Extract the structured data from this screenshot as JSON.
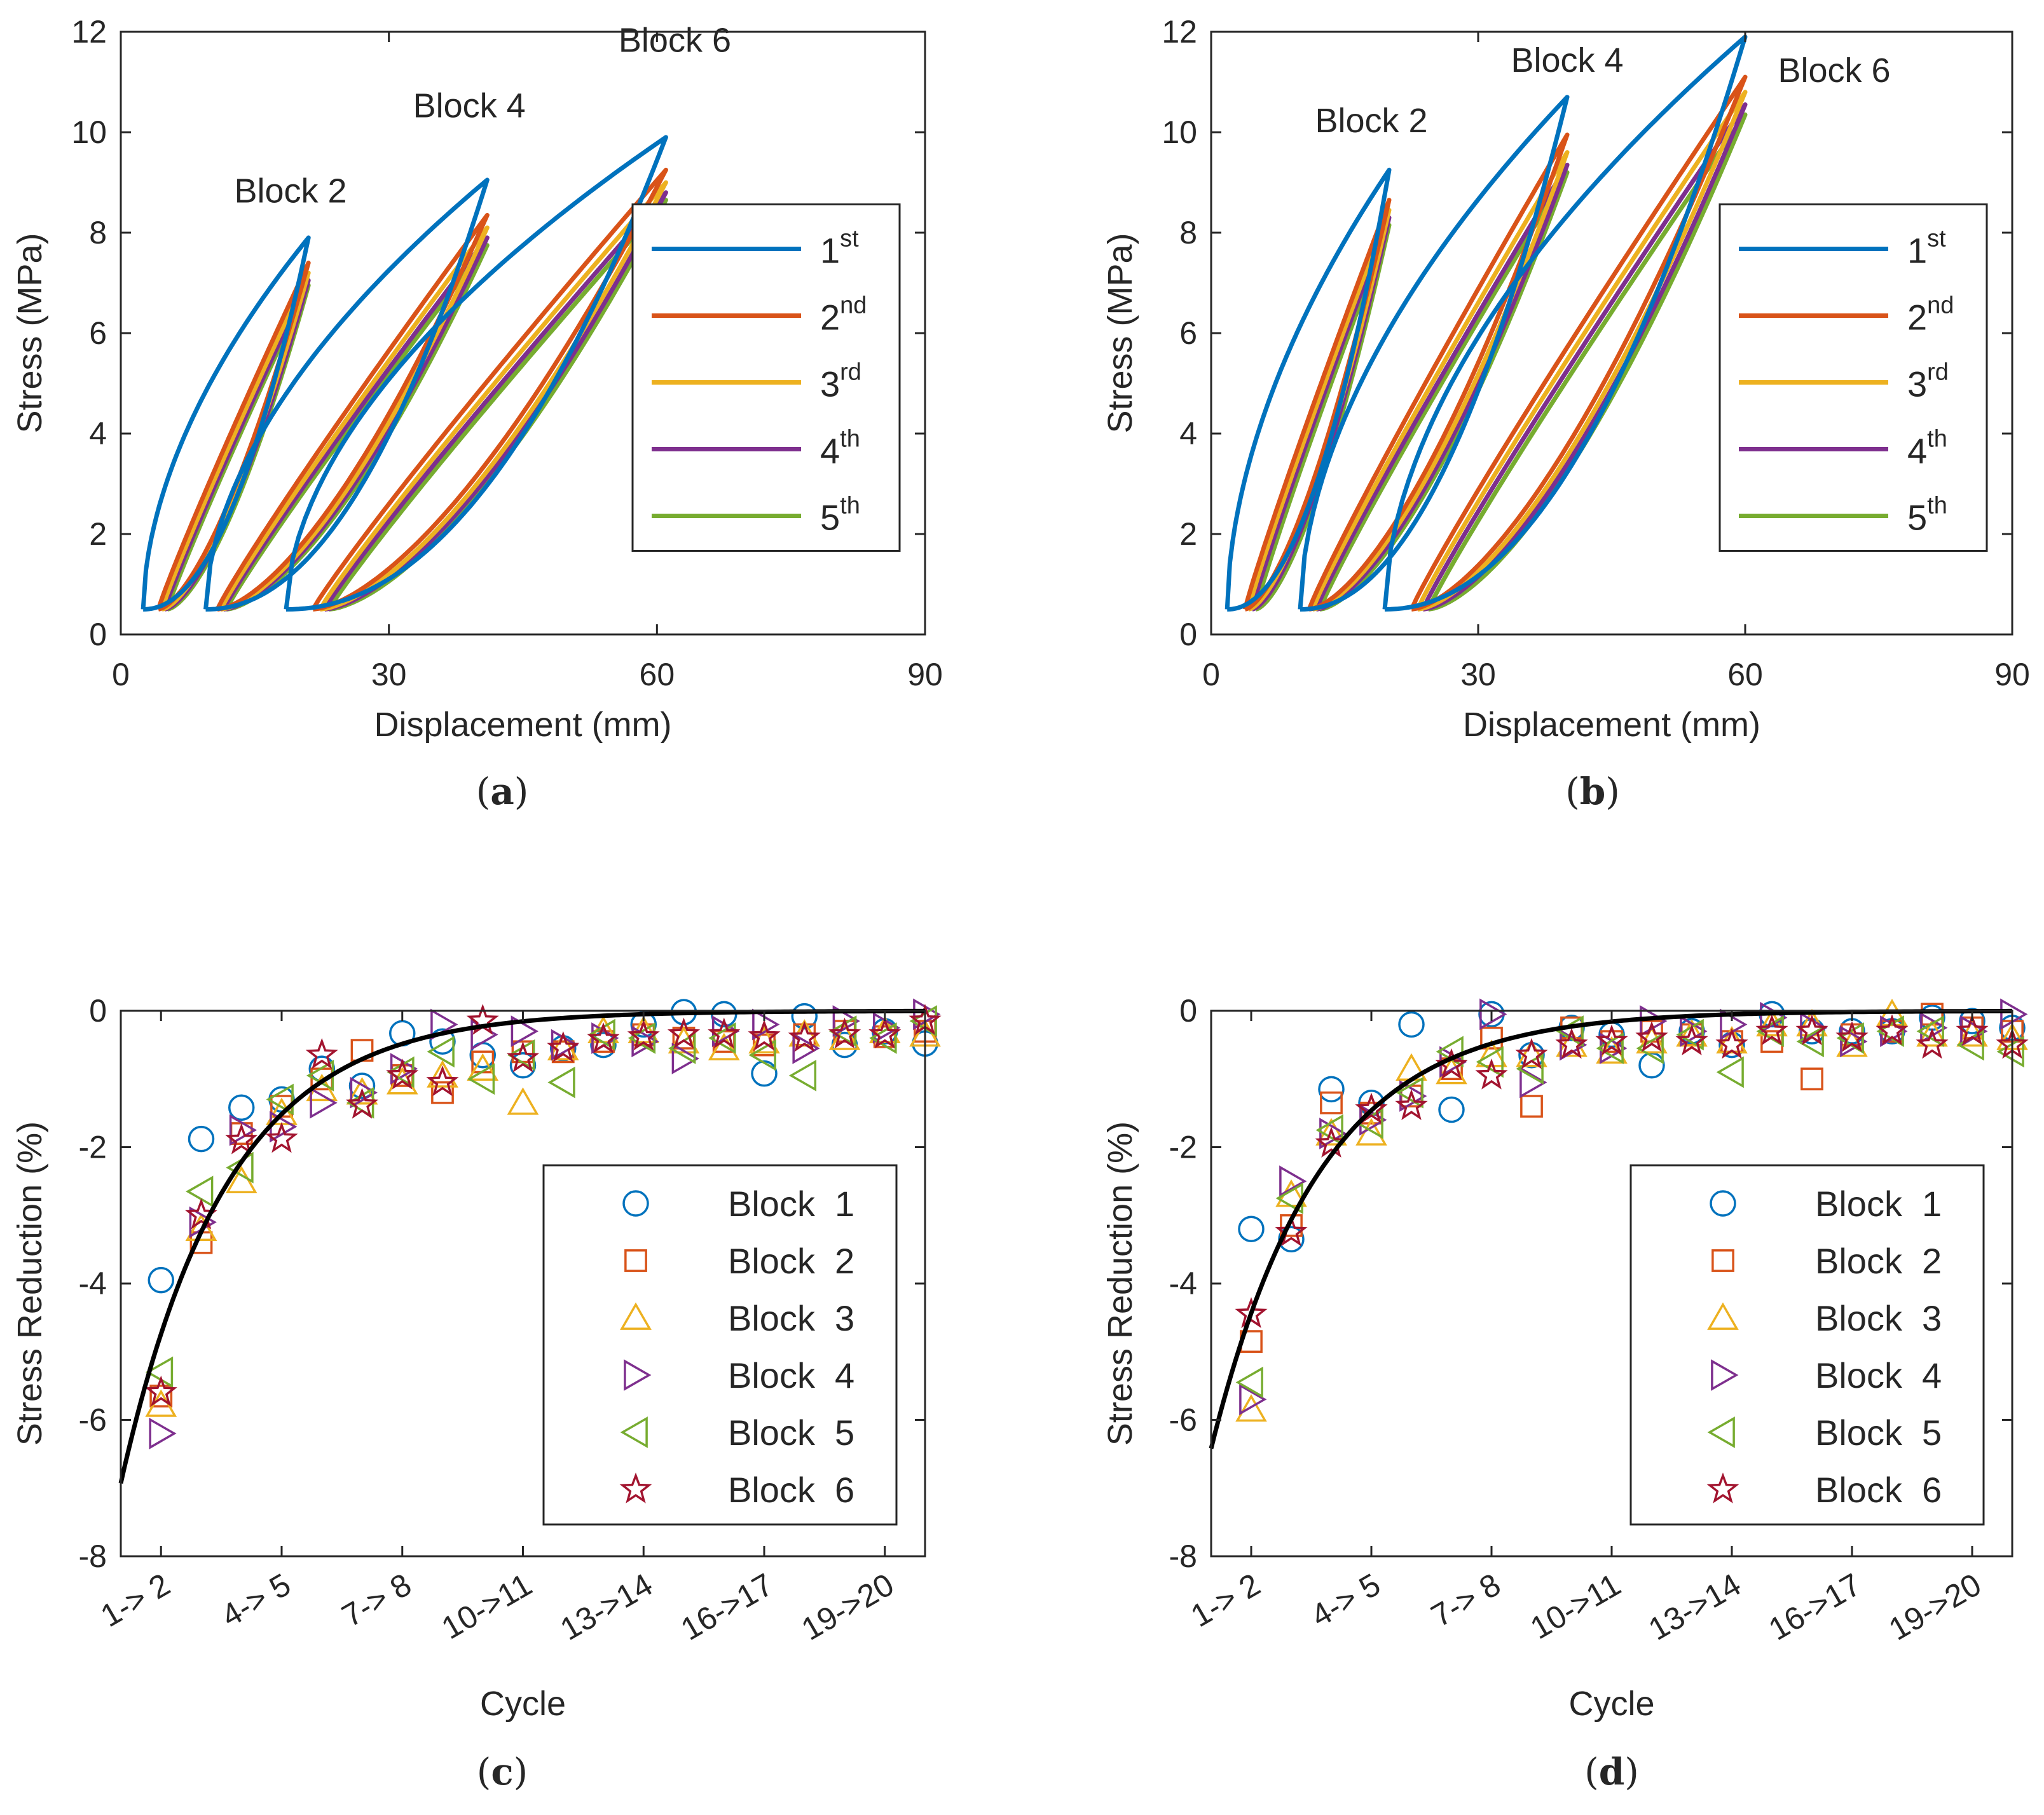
{
  "colors": {
    "c1": "#0072BD",
    "c2": "#D95319",
    "c3": "#EDB120",
    "c4": "#7E2F8E",
    "c5": "#77AC30",
    "c6": "#A2142F",
    "fit": "#000000",
    "axis": "#262626"
  },
  "chart_data": [
    {
      "id": "a",
      "caption_letter": "a",
      "type": "line",
      "xlabel": "Displacement (mm)",
      "ylabel": "Stress (MPa)",
      "xlim": [
        0,
        90
      ],
      "ylim": [
        0,
        12
      ],
      "xticks": [
        "0",
        "30",
        "60",
        "90"
      ],
      "yticks": [
        "0",
        "2",
        "4",
        "6",
        "8",
        "10",
        "12"
      ],
      "legend": {
        "position": "right-center",
        "entries": [
          {
            "base": "1",
            "sup": "st",
            "color": "c1"
          },
          {
            "base": "2",
            "sup": "nd",
            "color": "c2"
          },
          {
            "base": "3",
            "sup": "rd",
            "color": "c3"
          },
          {
            "base": "4",
            "sup": "th",
            "color": "c4"
          },
          {
            "base": "5",
            "sup": "th",
            "color": "c5"
          }
        ]
      },
      "annotations": [
        {
          "text": "Block 2",
          "x": 19,
          "y": 8.6
        },
        {
          "text": "Block 4",
          "x": 39,
          "y": 10.3
        },
        {
          "text": "Block 6",
          "x": 62,
          "y": 11.6
        }
      ],
      "blocks": [
        {
          "name": "Block 2",
          "peak_x": 21,
          "cycles": [
            {
              "cycle": 1,
              "start_x": 2.5,
              "peak_y": 7.9
            },
            {
              "cycle": 2,
              "start_x": 4.2,
              "peak_y": 7.4
            },
            {
              "cycle": 3,
              "start_x": 4.6,
              "peak_y": 7.2
            },
            {
              "cycle": 4,
              "start_x": 4.9,
              "peak_y": 7.05
            },
            {
              "cycle": 5,
              "start_x": 5.2,
              "peak_y": 6.95
            }
          ]
        },
        {
          "name": "Block 4",
          "peak_x": 41,
          "cycles": [
            {
              "cycle": 1,
              "start_x": 9.5,
              "peak_y": 9.05
            },
            {
              "cycle": 2,
              "start_x": 10.8,
              "peak_y": 8.35
            },
            {
              "cycle": 3,
              "start_x": 11.2,
              "peak_y": 8.1
            },
            {
              "cycle": 4,
              "start_x": 11.5,
              "peak_y": 7.9
            },
            {
              "cycle": 5,
              "start_x": 11.8,
              "peak_y": 7.75
            }
          ]
        },
        {
          "name": "Block 6",
          "peak_x": 61,
          "cycles": [
            {
              "cycle": 1,
              "start_x": 18.5,
              "peak_y": 9.9
            },
            {
              "cycle": 2,
              "start_x": 21.5,
              "peak_y": 9.25
            },
            {
              "cycle": 3,
              "start_x": 22.3,
              "peak_y": 9.0
            },
            {
              "cycle": 4,
              "start_x": 22.8,
              "peak_y": 8.8
            },
            {
              "cycle": 5,
              "start_x": 23.3,
              "peak_y": 8.65
            }
          ]
        }
      ]
    },
    {
      "id": "b",
      "caption_letter": "b",
      "type": "line",
      "xlabel": "Displacement (mm)",
      "ylabel": "Stress (MPa)",
      "xlim": [
        0,
        90
      ],
      "ylim": [
        0,
        12
      ],
      "xticks": [
        "0",
        "30",
        "60",
        "90"
      ],
      "yticks": [
        "0",
        "2",
        "4",
        "6",
        "8",
        "10",
        "12"
      ],
      "legend": {
        "position": "right-center",
        "entries": [
          {
            "base": "1",
            "sup": "st",
            "color": "c1"
          },
          {
            "base": "2",
            "sup": "nd",
            "color": "c2"
          },
          {
            "base": "3",
            "sup": "rd",
            "color": "c3"
          },
          {
            "base": "4",
            "sup": "th",
            "color": "c4"
          },
          {
            "base": "5",
            "sup": "th",
            "color": "c5"
          }
        ]
      },
      "annotations": [
        {
          "text": "Block 2",
          "x": 18,
          "y": 10.0
        },
        {
          "text": "Block 4",
          "x": 40,
          "y": 11.2
        },
        {
          "text": "Block 6",
          "x": 70,
          "y": 11.0
        }
      ],
      "blocks": [
        {
          "name": "Block 2",
          "peak_x": 20,
          "cycles": [
            {
              "cycle": 1,
              "start_x": 1.8,
              "peak_y": 9.25
            },
            {
              "cycle": 2,
              "start_x": 3.8,
              "peak_y": 8.65
            },
            {
              "cycle": 3,
              "start_x": 4.2,
              "peak_y": 8.45
            },
            {
              "cycle": 4,
              "start_x": 4.6,
              "peak_y": 8.3
            },
            {
              "cycle": 5,
              "start_x": 5.0,
              "peak_y": 8.15
            }
          ]
        },
        {
          "name": "Block 4",
          "peak_x": 40,
          "cycles": [
            {
              "cycle": 1,
              "start_x": 10.0,
              "peak_y": 10.7
            },
            {
              "cycle": 2,
              "start_x": 11.0,
              "peak_y": 9.95
            },
            {
              "cycle": 3,
              "start_x": 11.4,
              "peak_y": 9.6
            },
            {
              "cycle": 4,
              "start_x": 11.8,
              "peak_y": 9.35
            },
            {
              "cycle": 5,
              "start_x": 12.2,
              "peak_y": 9.2
            }
          ]
        },
        {
          "name": "Block 6",
          "peak_x": 60,
          "cycles": [
            {
              "cycle": 1,
              "start_x": 19.5,
              "peak_y": 11.9
            },
            {
              "cycle": 2,
              "start_x": 22.5,
              "peak_y": 11.1
            },
            {
              "cycle": 3,
              "start_x": 23.2,
              "peak_y": 10.8
            },
            {
              "cycle": 4,
              "start_x": 23.8,
              "peak_y": 10.55
            },
            {
              "cycle": 5,
              "start_x": 24.4,
              "peak_y": 10.35
            }
          ]
        }
      ]
    },
    {
      "id": "c",
      "caption_letter": "c",
      "type": "scatter",
      "xlabel": "Cycle",
      "ylabel": "Stress Reduction (%)",
      "xlim": [
        0,
        20
      ],
      "ylim": [
        -8,
        0
      ],
      "xticks": [
        {
          "x": 1,
          "label": "1-> 2"
        },
        {
          "x": 4,
          "label": "4-> 5"
        },
        {
          "x": 7,
          "label": "7-> 8"
        },
        {
          "x": 10,
          "label": "10->11"
        },
        {
          "x": 13,
          "label": "13->14"
        },
        {
          "x": 16,
          "label": "16->17"
        },
        {
          "x": 19,
          "label": "19->20"
        }
      ],
      "yticks": [
        "-8",
        "-6",
        "-4",
        "-2",
        "0"
      ],
      "legend": {
        "position": "bottom-right",
        "labels": [
          "Block  1",
          "Block  2",
          "Block  3",
          "Block  4",
          "Block  5",
          "Block  6"
        ]
      },
      "fit_curve": {
        "a": -6.93,
        "b": 0.38,
        "x0": 0
      },
      "series": [
        {
          "name": "Block  1",
          "marker": "circle",
          "color": "c1",
          "values": [
            -3.95,
            -1.88,
            -1.42,
            -1.3,
            -0.85,
            -1.1,
            -0.33,
            -0.45,
            -0.65,
            -0.8,
            -0.55,
            -0.5,
            -0.2,
            -0.02,
            -0.05,
            -0.92,
            -0.08,
            -0.5,
            -0.3,
            -0.48
          ]
        },
        {
          "name": "Block  2",
          "marker": "square",
          "color": "c2",
          "values": [
            -5.65,
            -3.4,
            -1.8,
            -1.4,
            -1.0,
            -0.58,
            -0.95,
            -1.2,
            -0.75,
            -0.6,
            -0.6,
            -0.45,
            -0.35,
            -0.4,
            -0.45,
            -0.5,
            -0.35,
            -0.3,
            -0.38,
            -0.3
          ]
        },
        {
          "name": "Block  3",
          "marker": "triangle-up",
          "color": "c3",
          "values": [
            -5.78,
            -3.2,
            -2.5,
            -1.5,
            -1.15,
            -1.2,
            -1.05,
            -0.95,
            -0.85,
            -1.35,
            -0.55,
            -0.3,
            -0.3,
            -0.45,
            -0.55,
            -0.45,
            -0.35,
            -0.4,
            -0.3,
            -0.35
          ]
        },
        {
          "name": "Block  4",
          "marker": "triangle-right",
          "color": "c4",
          "values": [
            -6.2,
            -3.1,
            -1.75,
            -1.7,
            -1.35,
            -1.2,
            -0.85,
            -0.2,
            -0.35,
            -0.3,
            -0.5,
            -0.4,
            -0.45,
            -0.7,
            -0.3,
            -0.2,
            -0.55,
            -0.15,
            -0.25,
            -0.05
          ]
        },
        {
          "name": "Block  5",
          "marker": "triangle-left",
          "color": "c5",
          "values": [
            -5.3,
            -2.65,
            -2.3,
            -1.3,
            -0.95,
            -1.35,
            -0.9,
            -0.6,
            -1.0,
            -0.65,
            -1.05,
            -0.35,
            -0.4,
            -0.55,
            -0.4,
            -0.65,
            -0.95,
            -0.3,
            -0.4,
            -0.15
          ]
        },
        {
          "name": "Block  6",
          "marker": "star",
          "color": "c6",
          "values": [
            -5.6,
            -3.0,
            -1.9,
            -1.88,
            -0.65,
            -1.38,
            -0.95,
            -1.05,
            -0.15,
            -0.7,
            -0.55,
            -0.42,
            -0.38,
            -0.35,
            -0.35,
            -0.38,
            -0.4,
            -0.35,
            -0.35,
            -0.15
          ]
        }
      ]
    },
    {
      "id": "d",
      "caption_letter": "d",
      "type": "scatter",
      "xlabel": "Cycle",
      "ylabel": "Stress Reduction (%)",
      "xlim": [
        0,
        20
      ],
      "ylim": [
        -8,
        0
      ],
      "xticks": [
        {
          "x": 1,
          "label": "1-> 2"
        },
        {
          "x": 4,
          "label": "4-> 5"
        },
        {
          "x": 7,
          "label": "7-> 8"
        },
        {
          "x": 10,
          "label": "10->11"
        },
        {
          "x": 13,
          "label": "13->14"
        },
        {
          "x": 16,
          "label": "16->17"
        },
        {
          "x": 19,
          "label": "19->20"
        }
      ],
      "yticks": [
        "-8",
        "-6",
        "-4",
        "-2",
        "0"
      ],
      "legend": {
        "position": "bottom-right",
        "labels": [
          "Block  1",
          "Block  2",
          "Block  3",
          "Block  4",
          "Block  5",
          "Block  6"
        ]
      },
      "fit_curve": {
        "a": -6.42,
        "b": 0.37,
        "x0": 0
      },
      "series": [
        {
          "name": "Block  1",
          "marker": "circle",
          "color": "c1",
          "values": [
            -3.2,
            -3.35,
            -1.15,
            -1.35,
            -0.2,
            -1.45,
            -0.05,
            -0.65,
            -0.25,
            -0.35,
            -0.8,
            -0.3,
            -0.5,
            -0.05,
            -0.3,
            -0.3,
            -0.3,
            -0.1,
            -0.15,
            -0.25
          ]
        },
        {
          "name": "Block  2",
          "marker": "square",
          "color": "c2",
          "values": [
            -4.85,
            -3.15,
            -1.35,
            -1.5,
            -1.25,
            -0.85,
            -0.4,
            -1.4,
            -0.25,
            -0.45,
            -0.3,
            -0.35,
            -0.45,
            -0.45,
            -1.0,
            -0.35,
            -0.3,
            -0.05,
            -0.25,
            -0.3
          ]
        },
        {
          "name": "Block  3",
          "marker": "triangle-up",
          "color": "c3",
          "values": [
            -5.85,
            -2.7,
            -1.8,
            -1.8,
            -0.85,
            -0.9,
            -0.65,
            -0.65,
            -0.5,
            -0.6,
            -0.45,
            -0.35,
            -0.45,
            -0.2,
            -0.2,
            -0.5,
            -0.05,
            -0.35,
            -0.35,
            -0.4
          ]
        },
        {
          "name": "Block  4",
          "marker": "triangle-right",
          "color": "c4",
          "values": [
            -5.7,
            -2.5,
            -1.8,
            -1.6,
            -1.25,
            -0.75,
            -0.05,
            -1.05,
            -0.5,
            -0.55,
            -0.15,
            -0.3,
            -0.2,
            -0.1,
            -0.25,
            -0.45,
            -0.3,
            -0.25,
            -0.3,
            -0.05
          ]
        },
        {
          "name": "Block  5",
          "marker": "triangle-left",
          "color": "c5",
          "values": [
            -5.45,
            -2.75,
            -1.75,
            -1.65,
            -1.2,
            -0.6,
            -0.75,
            -0.85,
            -0.3,
            -0.55,
            -0.55,
            -0.35,
            -0.9,
            -0.3,
            -0.45,
            -0.4,
            -0.3,
            -0.3,
            -0.5,
            -0.6
          ]
        },
        {
          "name": "Block  6",
          "marker": "star",
          "color": "c6",
          "values": [
            -4.45,
            -3.25,
            -1.95,
            -1.45,
            -1.4,
            -0.8,
            -0.95,
            -0.65,
            -0.5,
            -0.45,
            -0.4,
            -0.45,
            -0.5,
            -0.3,
            -0.3,
            -0.4,
            -0.3,
            -0.5,
            -0.3,
            -0.5
          ]
        }
      ]
    }
  ]
}
